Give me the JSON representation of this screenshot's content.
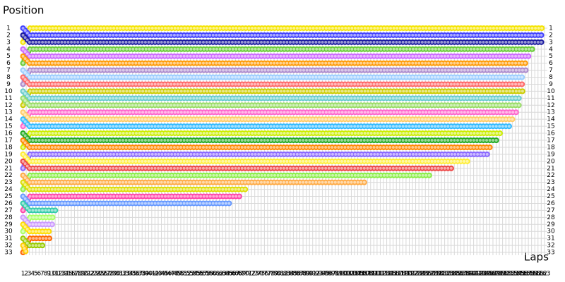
{
  "chart_data": {
    "type": "lapchart",
    "y_label": "Position",
    "x_label": "Laps",
    "xlim": [
      0,
      165
    ],
    "ylim": [
      0,
      34
    ],
    "y_inverted": true,
    "grid": true,
    "xticks": [
      1,
      2,
      3,
      4,
      5,
      6,
      7,
      8,
      9,
      10,
      11,
      12,
      13,
      14,
      15,
      16,
      17,
      18,
      19,
      20,
      21,
      22,
      23,
      24,
      25,
      26,
      27,
      28,
      29,
      30,
      31,
      32,
      33,
      34,
      35,
      36,
      37,
      38,
      39,
      40,
      41,
      42,
      43,
      44,
      45,
      46,
      47,
      48,
      49,
      50,
      51,
      52,
      53,
      54,
      55,
      56,
      57,
      58,
      59,
      60,
      61,
      62,
      63,
      64,
      65,
      66,
      67,
      68,
      69,
      70,
      71,
      72,
      73,
      74,
      75,
      76,
      77,
      78,
      79,
      80,
      81,
      82,
      83,
      84,
      85,
      86,
      87,
      88,
      89,
      90,
      91,
      92,
      93,
      94,
      95,
      96,
      97,
      98,
      99,
      100,
      101,
      102,
      103,
      104,
      105,
      106,
      107,
      108,
      109,
      110,
      111,
      112,
      113,
      114,
      115,
      116,
      117,
      118,
      119,
      120,
      121,
      122,
      123,
      124,
      125,
      126,
      127,
      128,
      129,
      130,
      131,
      132,
      133,
      134,
      135,
      136,
      137,
      138,
      139,
      140,
      141,
      142,
      143,
      144,
      145,
      146,
      147,
      148,
      149,
      150,
      151,
      152,
      153,
      154,
      155,
      156,
      157,
      158,
      159,
      160,
      161,
      162,
      163
    ],
    "yticks": [
      1,
      2,
      3,
      4,
      5,
      6,
      7,
      8,
      9,
      10,
      11,
      12,
      13,
      14,
      15,
      16,
      17,
      18,
      19,
      20,
      21,
      22,
      23,
      24,
      25,
      26,
      27,
      28,
      29,
      30,
      31,
      32,
      33
    ],
    "series": [
      {
        "color": "#f5e400",
        "x": [
          1,
          3,
          163
        ],
        "values": [
          3,
          1,
          1
        ]
      },
      {
        "color": "#4040ff",
        "x": [
          1,
          3,
          163
        ],
        "values": [
          1,
          2,
          2
        ]
      },
      {
        "color": "#1a1aa0",
        "x": [
          1,
          3,
          163
        ],
        "values": [
          2,
          3,
          3
        ]
      },
      {
        "color": "#66cc33",
        "x": [
          1,
          3,
          160
        ],
        "values": [
          6,
          4,
          4
        ]
      },
      {
        "color": "#cc66ff",
        "x": [
          1,
          3,
          159
        ],
        "values": [
          4,
          5,
          5
        ]
      },
      {
        "color": "#ff9900",
        "x": [
          1,
          3,
          158
        ],
        "values": [
          5,
          6,
          6
        ]
      },
      {
        "color": "#aa88cc",
        "x": [
          1,
          3,
          158
        ],
        "values": [
          9,
          7,
          7
        ]
      },
      {
        "color": "#99ccff",
        "x": [
          1,
          3,
          157
        ],
        "values": [
          7,
          8,
          8
        ]
      },
      {
        "color": "#ff6666",
        "x": [
          1,
          3,
          157
        ],
        "values": [
          8,
          9,
          9
        ]
      },
      {
        "color": "#cccc00",
        "x": [
          1,
          3,
          157
        ],
        "values": [
          12,
          10,
          10
        ]
      },
      {
        "color": "#66cccc",
        "x": [
          1,
          3,
          156
        ],
        "values": [
          10,
          11,
          11
        ]
      },
      {
        "color": "#99dd66",
        "x": [
          1,
          3,
          156
        ],
        "values": [
          11,
          12,
          12
        ]
      },
      {
        "color": "#ff66cc",
        "x": [
          1,
          3,
          155
        ],
        "values": [
          15,
          13,
          13
        ]
      },
      {
        "color": "#ffcc66",
        "x": [
          1,
          3,
          154
        ],
        "values": [
          13,
          14,
          14
        ]
      },
      {
        "color": "#33bbff",
        "x": [
          1,
          3,
          153
        ],
        "values": [
          14,
          15,
          15
        ]
      },
      {
        "color": "#ccee00",
        "x": [
          1,
          3,
          150
        ],
        "values": [
          18,
          16,
          16
        ]
      },
      {
        "color": "#22aa22",
        "x": [
          1,
          3,
          149
        ],
        "values": [
          16,
          17,
          17
        ]
      },
      {
        "color": "#ff8800",
        "x": [
          1,
          3,
          147
        ],
        "values": [
          17,
          18,
          18
        ]
      },
      {
        "color": "#8866ff",
        "x": [
          1,
          3,
          146
        ],
        "values": [
          21,
          19,
          19
        ]
      },
      {
        "color": "#ffee33",
        "x": [
          1,
          3,
          140
        ],
        "values": [
          19,
          20,
          20
        ]
      },
      {
        "color": "#ee4444",
        "x": [
          1,
          3,
          135
        ],
        "values": [
          20,
          21,
          21
        ]
      },
      {
        "color": "#88ee44",
        "x": [
          1,
          3,
          128
        ],
        "values": [
          24,
          22,
          22
        ]
      },
      {
        "color": "#ffaa44",
        "x": [
          1,
          3,
          108
        ],
        "values": [
          22,
          23,
          23
        ]
      },
      {
        "color": "#dddd00",
        "x": [
          1,
          3,
          71
        ],
        "values": [
          23,
          24,
          24
        ]
      },
      {
        "color": "#ff44aa",
        "x": [
          1,
          3,
          69
        ],
        "values": [
          27,
          25,
          25
        ]
      },
      {
        "color": "#6699ff",
        "x": [
          1,
          3,
          66
        ],
        "values": [
          25,
          26,
          26
        ]
      },
      {
        "color": "#33ccaa",
        "x": [
          1,
          3,
          12
        ],
        "values": [
          26,
          27,
          27
        ]
      },
      {
        "color": "#aaff66",
        "x": [
          1,
          3,
          11
        ],
        "values": [
          30,
          28,
          28
        ]
      },
      {
        "color": "#cc99ff",
        "x": [
          1,
          3,
          11
        ],
        "values": [
          28,
          29,
          29
        ]
      },
      {
        "color": "#ffdd00",
        "x": [
          1,
          3,
          10
        ],
        "values": [
          29,
          30,
          30
        ]
      },
      {
        "color": "#ff6600",
        "x": [
          1,
          3,
          10
        ],
        "values": [
          33,
          31,
          31
        ]
      },
      {
        "color": "#99cc00",
        "x": [
          1,
          3,
          8
        ],
        "values": [
          31,
          32,
          32
        ]
      },
      {
        "color": "#ffcc00",
        "x": [
          1,
          2
        ],
        "values": [
          32,
          33
        ]
      }
    ]
  }
}
